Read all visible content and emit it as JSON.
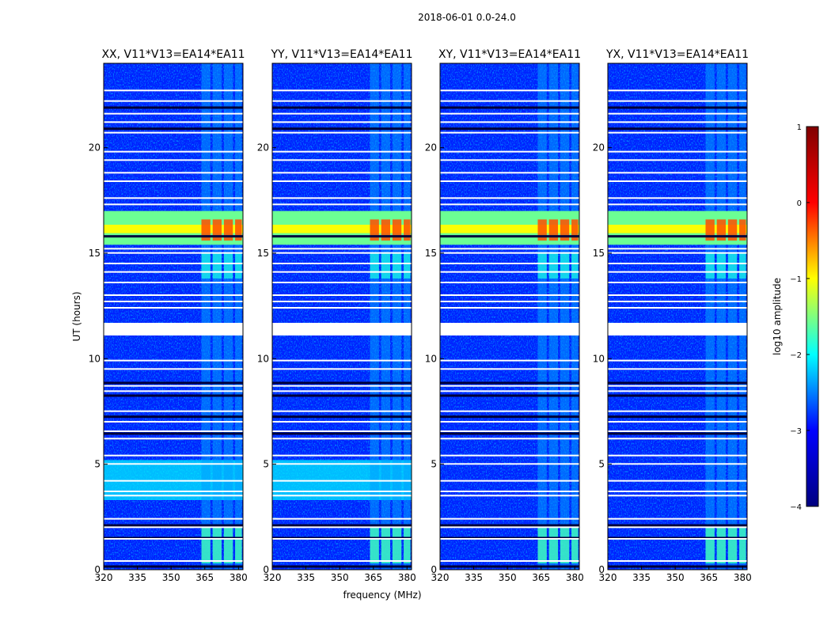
{
  "figure": {
    "suptitle": "2018-06-01 0.0-24.0",
    "xlabel": "frequency (MHz)",
    "ylabel": "UT (hours)"
  },
  "chart_data": {
    "type": "heatmap",
    "title": "2018-06-01 0.0-24.0",
    "xlabel": "frequency (MHz)",
    "ylabel": "UT (hours)",
    "xlim": [
      320,
      382
    ],
    "ylim": [
      0,
      24
    ],
    "x_ticks": [
      320,
      335,
      350,
      365,
      380
    ],
    "y_ticks": [
      0,
      5,
      10,
      15,
      20
    ],
    "panels": [
      {
        "title": "XX, V11*V13=EA14*EA11",
        "pol": "XX"
      },
      {
        "title": "YY, V11*V13=EA14*EA11",
        "pol": "YY"
      },
      {
        "title": "XY, V11*V13=EA14*EA11",
        "pol": "XY"
      },
      {
        "title": "YX, V11*V13=EA14*EA11",
        "pol": "YX"
      }
    ],
    "colorbar": {
      "label": "log10 amplitude",
      "range": [
        -4,
        1
      ],
      "ticks": [
        -4,
        -3,
        -2,
        -1,
        0,
        1
      ],
      "colormap": "jet",
      "stops": [
        "#000080",
        "#0000ff",
        "#00ffff",
        "#ffff00",
        "#ff0000",
        "#800000"
      ]
    },
    "background_level": -3.3,
    "rfi_channels_mhz": [
      {
        "start": 363.5,
        "end": 367.5
      },
      {
        "start": 368.5,
        "end": 372.5
      },
      {
        "start": 373.5,
        "end": 377.5
      },
      {
        "start": 378.5,
        "end": 381.5
      }
    ],
    "strong_rfi_hours": [
      15.4,
      17.0
    ],
    "strong_rfi_peak": 0.0,
    "flagged_hours": [
      {
        "start": 11.1,
        "end": 11.7
      },
      {
        "start": 0.4,
        "end": 0.45
      },
      {
        "start": 1.45,
        "end": 1.5
      },
      {
        "start": 2.0,
        "end": 2.05
      },
      {
        "start": 2.4,
        "end": 2.45
      },
      {
        "start": 3.5,
        "end": 3.55
      },
      {
        "start": 3.7,
        "end": 3.75
      },
      {
        "start": 4.2,
        "end": 4.25
      },
      {
        "start": 5.0,
        "end": 5.05
      },
      {
        "start": 5.4,
        "end": 5.45
      },
      {
        "start": 6.2,
        "end": 6.25
      },
      {
        "start": 6.55,
        "end": 6.6
      },
      {
        "start": 7.0,
        "end": 7.05
      },
      {
        "start": 7.5,
        "end": 7.55
      },
      {
        "start": 8.45,
        "end": 8.5
      },
      {
        "start": 8.7,
        "end": 8.75
      },
      {
        "start": 9.5,
        "end": 9.55
      },
      {
        "start": 9.9,
        "end": 9.95
      },
      {
        "start": 12.4,
        "end": 12.45
      },
      {
        "start": 12.7,
        "end": 12.75
      },
      {
        "start": 13.0,
        "end": 13.05
      },
      {
        "start": 13.6,
        "end": 13.65
      },
      {
        "start": 14.1,
        "end": 14.15
      },
      {
        "start": 14.5,
        "end": 14.55
      },
      {
        "start": 15.0,
        "end": 15.05
      },
      {
        "start": 15.2,
        "end": 15.25
      },
      {
        "start": 17.3,
        "end": 17.35
      },
      {
        "start": 17.6,
        "end": 17.65
      },
      {
        "start": 18.4,
        "end": 18.45
      },
      {
        "start": 18.8,
        "end": 18.85
      },
      {
        "start": 19.4,
        "end": 19.45
      },
      {
        "start": 19.8,
        "end": 19.85
      },
      {
        "start": 20.7,
        "end": 20.75
      },
      {
        "start": 21.2,
        "end": 21.25
      },
      {
        "start": 21.6,
        "end": 21.65
      },
      {
        "start": 22.2,
        "end": 22.25
      },
      {
        "start": 22.7,
        "end": 22.75
      }
    ],
    "dark_rows_hours": [
      0.15,
      1.5,
      2.1,
      6.45,
      7.25,
      8.25,
      8.85,
      15.8,
      20.9,
      21.9
    ]
  }
}
